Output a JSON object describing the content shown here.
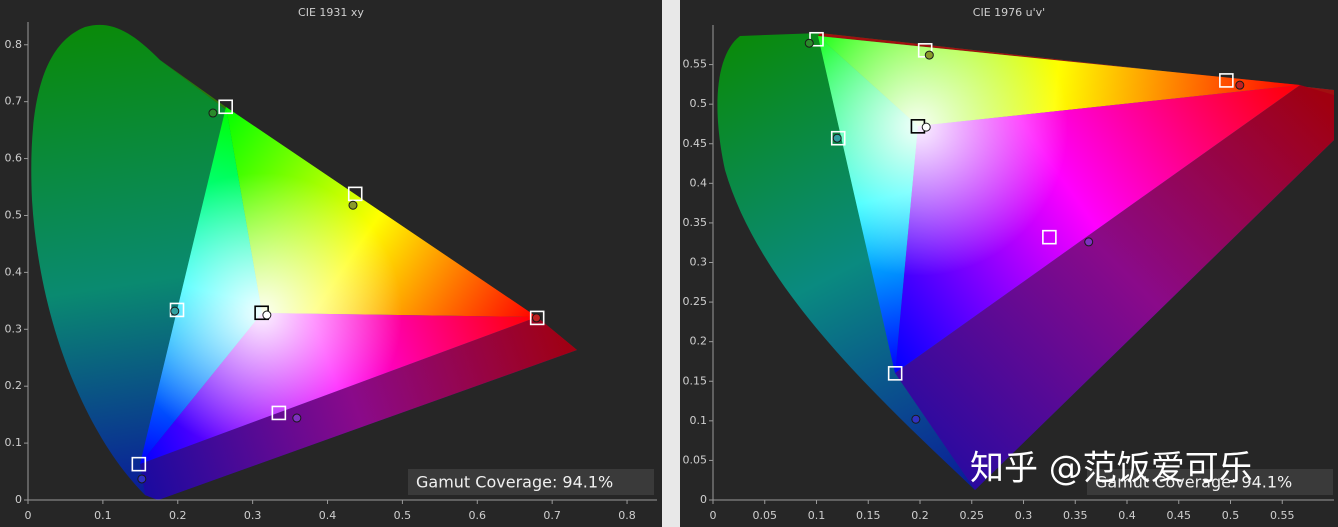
{
  "chart_data": [
    {
      "type": "scatter",
      "title": "CIE 1931 xy",
      "annotation": "Gamut Coverage:  94.1%",
      "xlim": [
        0,
        0.84
      ],
      "ylim": [
        0,
        0.84
      ],
      "xticks": [
        0,
        0.1,
        0.2,
        0.3,
        0.4,
        0.5,
        0.6,
        0.7,
        0.8
      ],
      "yticks": [
        0,
        0.1,
        0.2,
        0.3,
        0.4,
        0.5,
        0.6,
        0.7,
        0.8
      ],
      "series": [
        {
          "marker": "square",
          "colors": [
            "#ffffff",
            "#ffffff",
            "#ffffff",
            "#000000",
            "#ffffff",
            "#ffffff",
            "#ffffff"
          ],
          "x": [
            0.264,
            0.437,
            0.68,
            0.312,
            0.199,
            0.335,
            0.148
          ],
          "values": [
            0.691,
            0.538,
            0.32,
            0.329,
            0.334,
            0.153,
            0.063
          ]
        },
        {
          "marker": "circle",
          "colors": [
            "#2a8a2a",
            "#8a9a2a",
            "#c02020",
            "#ffffff",
            "#30a0a0",
            "#8030c0",
            "#3030c0"
          ],
          "x": [
            0.247,
            0.434,
            0.679,
            0.319,
            0.196,
            0.359,
            0.152
          ],
          "values": [
            0.68,
            0.518,
            0.32,
            0.325,
            0.332,
            0.144,
            0.037
          ]
        }
      ]
    },
    {
      "type": "scatter",
      "title": "CIE 1976 u'v'",
      "annotation": "Gamut Coverage:  94.1%",
      "xlim": [
        0,
        0.6
      ],
      "ylim": [
        0,
        0.6
      ],
      "xticks": [
        0,
        0.05,
        0.1,
        0.15,
        0.2,
        0.25,
        0.3,
        0.35,
        0.4,
        0.45,
        0.5,
        0.55
      ],
      "yticks": [
        0,
        0.05,
        0.1,
        0.15,
        0.2,
        0.25,
        0.3,
        0.35,
        0.4,
        0.45,
        0.5,
        0.55
      ],
      "series": [
        {
          "marker": "square",
          "colors": [
            "#ffffff",
            "#ffffff",
            "#ffffff",
            "#000000",
            "#ffffff",
            "#ffffff",
            "#ffffff"
          ],
          "x": [
            0.1,
            0.205,
            0.496,
            0.198,
            0.121,
            0.325,
            0.176
          ],
          "values": [
            0.582,
            0.568,
            0.53,
            0.472,
            0.457,
            0.332,
            0.16
          ]
        },
        {
          "marker": "circle",
          "colors": [
            "#2a8a2a",
            "#8a9a2a",
            "#c02020",
            "#ffffff",
            "#30a0a0",
            "#8030c0",
            "#3030c0"
          ],
          "x": [
            0.093,
            0.209,
            0.509,
            0.206,
            0.12,
            0.363,
            0.196
          ],
          "values": [
            0.577,
            0.562,
            0.524,
            0.471,
            0.457,
            0.326,
            0.102
          ]
        }
      ]
    }
  ],
  "watermark": "知乎 @范饭爱可乐"
}
